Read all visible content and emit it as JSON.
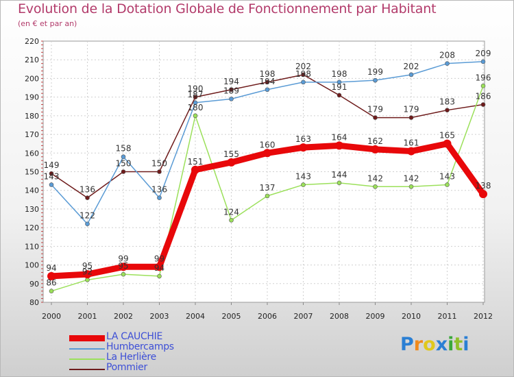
{
  "title": "Evolution de la Dotation Globale de Fonctionnement par Habitant",
  "subtitle": "(en € et par an)",
  "chart_data": {
    "type": "line",
    "title": "Evolution de la Dotation Globale de Fonctionnement par Habitant",
    "ylabel": "(en € et par an)",
    "xlabel": "",
    "ylim": [
      80,
      220
    ],
    "yticks": [
      80,
      90,
      100,
      110,
      120,
      130,
      140,
      150,
      160,
      170,
      180,
      190,
      200,
      210,
      220
    ],
    "categories": [
      "2000",
      "2001",
      "2002",
      "2003",
      "2004",
      "2005",
      "2006",
      "2007",
      "2008",
      "2009",
      "2010",
      "2011",
      "2012"
    ],
    "grid": true,
    "series": [
      {
        "name": "LA CAUCHIE",
        "color": "#e8080a",
        "values": [
          94,
          95,
          99,
          99,
          151,
          155,
          160,
          163,
          164,
          162,
          161,
          165,
          138
        ]
      },
      {
        "name": "Humbercamps",
        "color": "#5a9bd5",
        "values": [
          143,
          122,
          158,
          136,
          187,
          189,
          194,
          198,
          198,
          199,
          202,
          208,
          209
        ]
      },
      {
        "name": "La Herlière",
        "color": "#9be05a",
        "values": [
          86,
          92,
          95,
          94,
          180,
          124,
          137,
          143,
          144,
          142,
          142,
          143,
          196
        ]
      },
      {
        "name": "Pommier",
        "color": "#6e1b1b",
        "values": [
          149,
          136,
          150,
          150,
          190,
          194,
          198,
          202,
          191,
          179,
          179,
          183,
          186
        ]
      }
    ]
  },
  "logo": {
    "text": "Proxiti",
    "colors": [
      "#2a7fd4",
      "#f08a1c",
      "#e0c81c",
      "#2a7fd4",
      "#3aa83a",
      "#8fbf2a",
      "#2a7fd4"
    ]
  }
}
